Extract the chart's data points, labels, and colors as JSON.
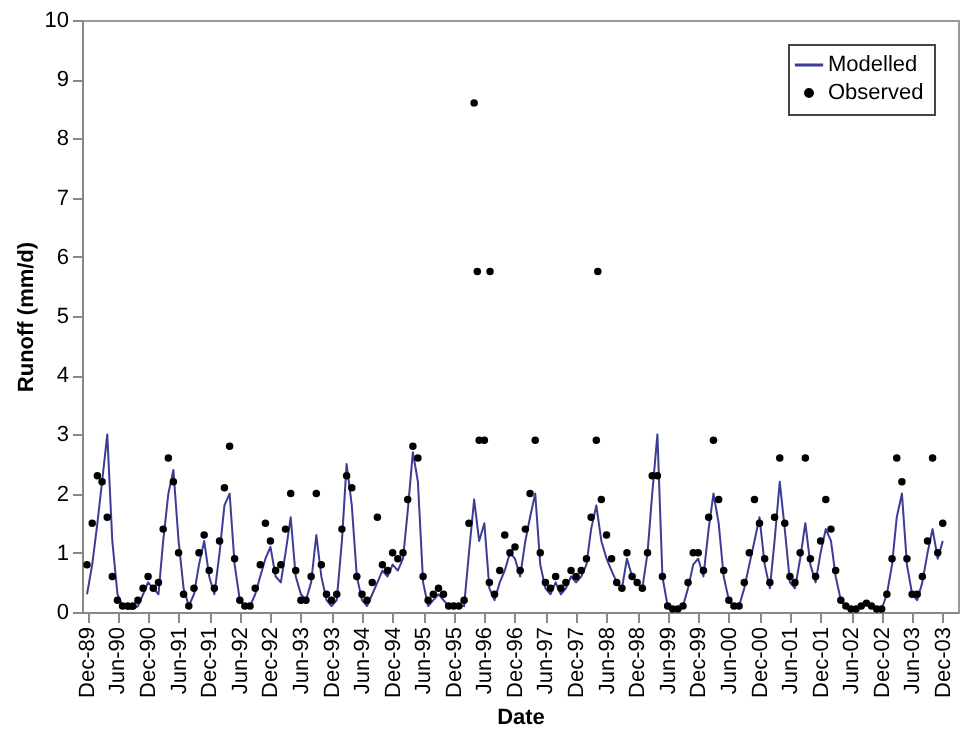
{
  "chart_data": {
    "type": "line",
    "xlabel": "Date",
    "ylabel": "Runoff (mm/d)",
    "xlim": [
      "1989-11-01",
      "2004-03-01"
    ],
    "ylim": [
      0,
      10
    ],
    "yticks": [
      0,
      1,
      2,
      3,
      4,
      5,
      6,
      7,
      8,
      9,
      10
    ],
    "xticks": [
      {
        "value": "1989-12",
        "label": "Dec-89"
      },
      {
        "value": "1990-06",
        "label": "Jun-90"
      },
      {
        "value": "1990-12",
        "label": "Dec-90"
      },
      {
        "value": "1991-06",
        "label": "Jun-91"
      },
      {
        "value": "1991-12",
        "label": "Dec-91"
      },
      {
        "value": "1992-06",
        "label": "Jun-92"
      },
      {
        "value": "1992-12",
        "label": "Dec-92"
      },
      {
        "value": "1993-06",
        "label": "Jun-93"
      },
      {
        "value": "1993-12",
        "label": "Dec-93"
      },
      {
        "value": "1994-06",
        "label": "Jun-94"
      },
      {
        "value": "1994-12",
        "label": "Dec-94"
      },
      {
        "value": "1995-06",
        "label": "Jun-95"
      },
      {
        "value": "1995-12",
        "label": "Dec-95"
      },
      {
        "value": "1996-06",
        "label": "Jun-96"
      },
      {
        "value": "1996-12",
        "label": "Dec-96"
      },
      {
        "value": "1997-06",
        "label": "Jun-97"
      },
      {
        "value": "1997-12",
        "label": "Dec-97"
      },
      {
        "value": "1998-06",
        "label": "Jun-98"
      },
      {
        "value": "1998-12",
        "label": "Dec-98"
      },
      {
        "value": "1999-06",
        "label": "Jun-99"
      },
      {
        "value": "1999-12",
        "label": "Dec-99"
      },
      {
        "value": "2000-06",
        "label": "Jun-00"
      },
      {
        "value": "2000-12",
        "label": "Dec-00"
      },
      {
        "value": "2001-06",
        "label": "Jun-01"
      },
      {
        "value": "2001-12",
        "label": "Dec-01"
      },
      {
        "value": "2002-06",
        "label": "Jun-02"
      },
      {
        "value": "2002-12",
        "label": "Dec-02"
      },
      {
        "value": "2003-06",
        "label": "Jun-03"
      },
      {
        "value": "2003-12",
        "label": "Dec-03"
      }
    ],
    "legend": "top right",
    "line_style": "solid",
    "x": [
      "1989-12",
      "1990-01",
      "1990-02",
      "1990-03",
      "1990-04",
      "1990-05",
      "1990-06",
      "1990-07",
      "1990-08",
      "1990-09",
      "1990-10",
      "1990-11",
      "1990-12",
      "1991-01",
      "1991-02",
      "1991-03",
      "1991-04",
      "1991-05",
      "1991-06",
      "1991-07",
      "1991-08",
      "1991-09",
      "1991-10",
      "1991-11",
      "1991-12",
      "1992-01",
      "1992-02",
      "1992-03",
      "1992-04",
      "1992-05",
      "1992-06",
      "1992-07",
      "1992-08",
      "1992-09",
      "1992-10",
      "1992-11",
      "1992-12",
      "1993-01",
      "1993-02",
      "1993-03",
      "1993-04",
      "1993-05",
      "1993-06",
      "1993-07",
      "1993-08",
      "1993-09",
      "1993-10",
      "1993-11",
      "1993-12",
      "1994-01",
      "1994-02",
      "1994-03",
      "1994-04",
      "1994-05",
      "1994-06",
      "1994-07",
      "1994-08",
      "1994-09",
      "1994-10",
      "1994-11",
      "1994-12",
      "1995-01",
      "1995-02",
      "1995-03",
      "1995-04",
      "1995-05",
      "1995-06",
      "1995-07",
      "1995-08",
      "1995-09",
      "1995-10",
      "1995-11",
      "1995-12",
      "1996-01",
      "1996-02",
      "1996-03",
      "1996-04",
      "1996-05",
      "1996-06",
      "1996-07",
      "1996-08",
      "1996-09",
      "1996-10",
      "1996-11",
      "1996-12",
      "1997-01",
      "1997-02",
      "1997-03",
      "1997-04",
      "1997-05",
      "1997-06",
      "1997-07",
      "1997-08",
      "1997-09",
      "1997-10",
      "1997-11",
      "1997-12",
      "1998-01",
      "1998-02",
      "1998-03",
      "1998-04",
      "1998-05",
      "1998-06",
      "1998-07",
      "1998-08",
      "1998-09",
      "1998-10",
      "1998-11",
      "1998-12",
      "1999-01",
      "1999-02",
      "1999-03",
      "1999-04",
      "1999-05",
      "1999-06",
      "1999-07",
      "1999-08",
      "1999-09",
      "1999-10",
      "1999-11",
      "1999-12",
      "2000-01",
      "2000-02",
      "2000-03",
      "2000-04",
      "2000-05",
      "2000-06",
      "2000-07",
      "2000-08",
      "2000-09",
      "2000-10",
      "2000-11",
      "2000-12",
      "2001-01",
      "2001-02",
      "2001-03",
      "2001-04",
      "2001-05",
      "2001-06",
      "2001-07",
      "2001-08",
      "2001-09",
      "2001-10",
      "2001-11",
      "2001-12",
      "2002-01",
      "2002-02",
      "2002-03",
      "2002-04",
      "2002-05",
      "2002-06",
      "2002-07",
      "2002-08",
      "2002-09",
      "2002-10",
      "2002-11",
      "2002-12",
      "2003-01",
      "2003-02",
      "2003-03",
      "2003-04",
      "2003-05",
      "2003-06",
      "2003-07",
      "2003-08",
      "2003-09",
      "2003-10",
      "2003-11",
      "2003-12"
    ],
    "series": [
      {
        "name": "Modelled",
        "color": "#3c3c96",
        "values": [
          0.3,
          0.8,
          1.5,
          2.2,
          3.0,
          1.2,
          0.3,
          0.1,
          0.05,
          0.05,
          0.1,
          0.3,
          0.5,
          0.4,
          0.3,
          1.2,
          2.0,
          2.4,
          1.2,
          0.4,
          0.1,
          0.3,
          0.8,
          1.2,
          0.6,
          0.3,
          1.0,
          1.8,
          2.0,
          0.8,
          0.2,
          0.1,
          0.1,
          0.3,
          0.6,
          0.9,
          1.1,
          0.6,
          0.5,
          1.0,
          1.6,
          0.6,
          0.3,
          0.2,
          0.5,
          1.3,
          0.6,
          0.2,
          0.1,
          0.2,
          1.2,
          2.5,
          1.8,
          0.6,
          0.2,
          0.1,
          0.3,
          0.5,
          0.7,
          0.6,
          0.8,
          0.7,
          0.9,
          1.7,
          2.7,
          2.2,
          0.5,
          0.1,
          0.2,
          0.3,
          0.2,
          0.1,
          0.1,
          0.1,
          0.1,
          1.0,
          1.9,
          1.2,
          1.5,
          0.4,
          0.2,
          0.5,
          0.7,
          1.0,
          0.9,
          0.6,
          1.2,
          1.6,
          2.0,
          0.8,
          0.4,
          0.3,
          0.5,
          0.3,
          0.4,
          0.6,
          0.5,
          0.6,
          0.8,
          1.4,
          1.8,
          1.2,
          0.9,
          0.7,
          0.5,
          0.4,
          0.9,
          0.6,
          0.5,
          0.4,
          1.0,
          2.0,
          3.0,
          0.6,
          0.1,
          0.05,
          0.05,
          0.1,
          0.4,
          0.8,
          0.9,
          0.6,
          1.4,
          2.0,
          1.5,
          0.6,
          0.2,
          0.1,
          0.1,
          0.4,
          0.8,
          1.2,
          1.6,
          0.8,
          0.4,
          1.2,
          2.2,
          1.4,
          0.5,
          0.4,
          0.9,
          1.5,
          0.8,
          0.5,
          1.0,
          1.4,
          1.2,
          0.6,
          0.2,
          0.1,
          0.05,
          0.05,
          0.1,
          0.15,
          0.1,
          0.05,
          0.05,
          0.3,
          0.8,
          1.6,
          2.0,
          0.8,
          0.3,
          0.2,
          0.5,
          1.0,
          1.4,
          0.9,
          1.2
        ]
      },
      {
        "name": "Observed",
        "type": "scatter",
        "marker": "circle",
        "color": "#000000",
        "x": [
          "1989-12",
          "1990-01",
          "1990-02",
          "1990-03",
          "1990-04",
          "1990-05",
          "1990-06",
          "1990-07",
          "1990-08",
          "1990-09",
          "1990-10",
          "1990-11",
          "1990-12",
          "1991-01",
          "1991-02",
          "1991-03",
          "1991-04",
          "1991-05",
          "1991-06",
          "1991-07",
          "1991-08",
          "1991-09",
          "1991-10",
          "1991-11",
          "1991-12",
          "1992-01",
          "1992-02",
          "1992-03",
          "1992-04",
          "1992-05",
          "1992-06",
          "1992-07",
          "1992-08",
          "1992-09",
          "1992-10",
          "1992-11",
          "1992-12",
          "1993-01",
          "1993-02",
          "1993-03",
          "1993-04",
          "1993-05",
          "1993-06",
          "1993-07",
          "1993-08",
          "1993-09",
          "1993-10",
          "1993-11",
          "1993-12",
          "1994-01",
          "1994-02",
          "1994-03",
          "1994-04",
          "1994-05",
          "1994-06",
          "1994-07",
          "1994-08",
          "1994-09",
          "1994-10",
          "1994-11",
          "1994-12",
          "1995-01",
          "1995-02",
          "1995-03",
          "1995-04",
          "1995-05",
          "1995-06",
          "1995-07",
          "1995-08",
          "1995-09",
          "1995-10",
          "1995-11",
          "1995-12",
          "1996-01",
          "1996-02",
          "1996-03",
          "1996-04",
          "1996-05",
          "1996-06",
          "1996-07",
          "1996-08",
          "1996-09",
          "1996-10",
          "1996-11",
          "1996-12",
          "1997-01",
          "1997-02",
          "1997-03",
          "1997-04",
          "1997-05",
          "1997-06",
          "1997-07",
          "1997-08",
          "1997-09",
          "1997-10",
          "1997-11",
          "1997-12",
          "1998-01",
          "1998-02",
          "1998-03",
          "1998-04",
          "1998-05",
          "1998-06",
          "1998-07",
          "1998-08",
          "1998-09",
          "1998-10",
          "1998-11",
          "1998-12",
          "1999-01",
          "1999-02",
          "1999-03",
          "1999-04",
          "1999-05",
          "1999-06",
          "1999-07",
          "1999-08",
          "1999-09",
          "1999-10",
          "1999-11",
          "1999-12",
          "2000-01",
          "2000-02",
          "2000-03",
          "2000-04",
          "2000-05",
          "2000-06",
          "2000-07",
          "2000-08",
          "2000-09",
          "2000-10",
          "2000-11",
          "2000-12",
          "2001-01",
          "2001-02",
          "2001-03",
          "2001-04",
          "2001-05",
          "2001-06",
          "2001-07",
          "2001-08",
          "2001-09",
          "2001-10",
          "2001-11",
          "2001-12",
          "2002-01",
          "2002-02",
          "2002-03",
          "2002-04",
          "2002-05",
          "2002-06",
          "2002-07",
          "2002-08",
          "2002-09",
          "2002-10",
          "2002-11",
          "2002-12",
          "2003-01",
          "2003-02",
          "2003-03",
          "2003-04",
          "2003-05",
          "2003-06",
          "2003-07",
          "2003-08",
          "2003-09",
          "2003-10",
          "2003-11",
          "2003-12",
          "1996-04-20",
          "1996-07-05",
          "1998-04-10"
        ],
        "values": [
          0.8,
          1.5,
          2.3,
          2.2,
          1.6,
          0.6,
          0.2,
          0.1,
          0.1,
          0.1,
          0.2,
          0.4,
          0.6,
          0.4,
          0.5,
          1.4,
          2.6,
          2.2,
          1.0,
          0.3,
          0.1,
          0.4,
          1.0,
          1.3,
          0.7,
          0.4,
          1.2,
          2.1,
          2.8,
          0.9,
          0.2,
          0.1,
          0.1,
          0.4,
          0.8,
          1.5,
          1.2,
          0.7,
          0.8,
          1.4,
          2.0,
          0.7,
          0.2,
          0.2,
          0.6,
          2.0,
          0.8,
          0.3,
          0.2,
          0.3,
          1.4,
          2.3,
          2.1,
          0.6,
          0.3,
          0.2,
          0.5,
          1.6,
          0.8,
          0.7,
          1.0,
          0.9,
          1.0,
          1.9,
          2.8,
          2.6,
          0.6,
          0.2,
          0.3,
          0.4,
          0.3,
          0.1,
          0.1,
          0.1,
          0.2,
          1.5,
          8.6,
          2.9,
          2.9,
          0.5,
          0.3,
          0.7,
          1.3,
          1.0,
          1.1,
          0.7,
          1.4,
          2.0,
          2.9,
          1.0,
          0.5,
          0.4,
          0.6,
          0.4,
          0.5,
          0.7,
          0.6,
          0.7,
          0.9,
          1.6,
          2.9,
          1.9,
          1.3,
          0.9,
          0.5,
          0.4,
          1.0,
          0.6,
          0.5,
          0.4,
          1.0,
          2.3,
          2.3,
          0.6,
          0.1,
          0.05,
          0.05,
          0.1,
          0.5,
          1.0,
          1.0,
          0.7,
          1.6,
          2.9,
          1.9,
          0.7,
          0.2,
          0.1,
          0.1,
          0.5,
          1.0,
          1.9,
          1.5,
          0.9,
          0.5,
          1.6,
          2.6,
          1.5,
          0.6,
          0.5,
          1.0,
          2.6,
          0.9,
          0.6,
          1.2,
          1.9,
          1.4,
          0.7,
          0.2,
          0.1,
          0.05,
          0.05,
          0.1,
          0.15,
          0.1,
          0.05,
          0.05,
          0.3,
          0.9,
          2.6,
          2.2,
          0.9,
          0.3,
          0.3,
          0.6,
          1.2,
          2.6,
          1.0,
          1.5,
          5.75,
          5.75,
          5.75
        ]
      }
    ]
  }
}
